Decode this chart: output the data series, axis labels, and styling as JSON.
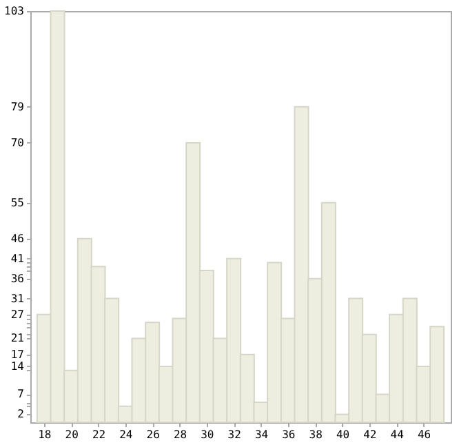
{
  "chart_data": {
    "type": "bar",
    "x": [
      18,
      19,
      20,
      21,
      22,
      23,
      24,
      25,
      26,
      27,
      28,
      29,
      30,
      31,
      32,
      33,
      34,
      35,
      36,
      37,
      38,
      39,
      40,
      41,
      42,
      43,
      44,
      45,
      46,
      47
    ],
    "values": [
      27,
      103,
      13,
      46,
      39,
      31,
      4,
      21,
      25,
      14,
      26,
      70,
      38,
      21,
      41,
      17,
      5,
      40,
      26,
      79,
      36,
      55,
      2,
      31,
      22,
      7,
      27,
      31,
      14,
      24
    ],
    "color": "#eeeee0",
    "xlim": [
      17.5,
      47.5
    ],
    "xticks": [
      18,
      20,
      22,
      24,
      26,
      28,
      30,
      32,
      34,
      36,
      38,
      40,
      42,
      44,
      46
    ],
    "ylim": [
      0,
      103
    ],
    "yticks": [
      2,
      {
        "value": 4,
        "label": null
      },
      {
        "value": 5,
        "label": null
      },
      7,
      {
        "value": 13,
        "label": null
      },
      14,
      17,
      21,
      {
        "value": 22,
        "label": null
      },
      {
        "value": 24,
        "label": null
      },
      {
        "value": 25,
        "label": null
      },
      {
        "value": 26,
        "label": null
      },
      27,
      31,
      36,
      {
        "value": 38,
        "label": null
      },
      {
        "value": 39,
        "label": null
      },
      {
        "value": 40,
        "label": null
      },
      41,
      46,
      55,
      70,
      79,
      103
    ],
    "grid": false
  }
}
